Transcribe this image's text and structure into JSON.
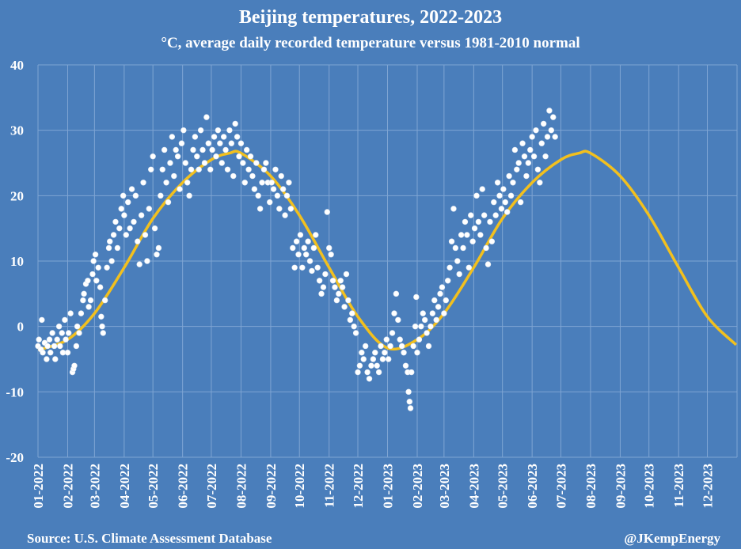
{
  "chart_data": {
    "type": "scatter",
    "title": "Beijing temperatures, 2022-2023",
    "subtitle": "°C, average daily recorded temperature versus 1981-2010 normal",
    "source": "Source: U.S. Climate Assessment Database",
    "credit": "@JKempEnergy",
    "xlabel": "",
    "ylabel": "",
    "ylim": [
      -20,
      40
    ],
    "yticks": [
      "-20",
      "-10",
      "0",
      "10",
      "20",
      "30",
      "40"
    ],
    "xticks": [
      "01-2022",
      "02-2022",
      "03-2022",
      "04-2022",
      "05-2022",
      "06-2022",
      "07-2022",
      "08-2022",
      "09-2022",
      "10-2022",
      "11-2022",
      "12-2022",
      "01-2023",
      "02-2023",
      "03-2023",
      "04-2023",
      "05-2023",
      "06-2023",
      "07-2023",
      "08-2023",
      "09-2023",
      "10-2023",
      "11-2023",
      "12-2023"
    ],
    "x_unit": "days since 2022-01-01",
    "xlim": [
      0,
      730
    ],
    "grid": true,
    "colors": {
      "background": "#4a7ebb",
      "points": "#ffffff",
      "normal": "#f2c01e",
      "grid": "#7fa5d3"
    },
    "series": [
      {
        "name": "Daily recorded temperature",
        "type": "scatter",
        "points": [
          [
            0,
            -3
          ],
          [
            1,
            -2
          ],
          [
            3,
            -3.5
          ],
          [
            4,
            1
          ],
          [
            5,
            -4
          ],
          [
            7,
            -2.5
          ],
          [
            9,
            -5
          ],
          [
            10,
            -3
          ],
          [
            12,
            -2
          ],
          [
            13,
            -4
          ],
          [
            15,
            -1
          ],
          [
            17,
            -3
          ],
          [
            18,
            -5
          ],
          [
            20,
            -2
          ],
          [
            22,
            0
          ],
          [
            23,
            -3
          ],
          [
            25,
            -1
          ],
          [
            26,
            -4
          ],
          [
            28,
            1
          ],
          [
            29,
            -2
          ],
          [
            31,
            -4
          ],
          [
            32,
            -1
          ],
          [
            34,
            2
          ],
          [
            36,
            -7
          ],
          [
            37,
            -6.5
          ],
          [
            38,
            -6
          ],
          [
            40,
            -3
          ],
          [
            41,
            0
          ],
          [
            43,
            -1
          ],
          [
            45,
            2
          ],
          [
            47,
            4
          ],
          [
            48,
            5
          ],
          [
            50,
            6.5
          ],
          [
            52,
            7
          ],
          [
            53,
            3
          ],
          [
            55,
            4
          ],
          [
            57,
            8
          ],
          [
            58,
            10
          ],
          [
            60,
            11
          ],
          [
            61,
            7
          ],
          [
            63,
            9
          ],
          [
            65,
            6
          ],
          [
            66,
            1.5
          ],
          [
            67,
            0
          ],
          [
            68,
            -1
          ],
          [
            70,
            4
          ],
          [
            72,
            9
          ],
          [
            74,
            12
          ],
          [
            75,
            13
          ],
          [
            77,
            10
          ],
          [
            79,
            14
          ],
          [
            81,
            16
          ],
          [
            83,
            12
          ],
          [
            85,
            15
          ],
          [
            87,
            18
          ],
          [
            89,
            20
          ],
          [
            90,
            17
          ],
          [
            92,
            14
          ],
          [
            94,
            19
          ],
          [
            96,
            15
          ],
          [
            98,
            21
          ],
          [
            100,
            16
          ],
          [
            102,
            20
          ],
          [
            104,
            13
          ],
          [
            106,
            9.5
          ],
          [
            108,
            17
          ],
          [
            110,
            22
          ],
          [
            112,
            14
          ],
          [
            114,
            10
          ],
          [
            116,
            18
          ],
          [
            118,
            24
          ],
          [
            120,
            26
          ],
          [
            122,
            15
          ],
          [
            124,
            11
          ],
          [
            126,
            12
          ],
          [
            128,
            20
          ],
          [
            130,
            24
          ],
          [
            132,
            27
          ],
          [
            134,
            22
          ],
          [
            136,
            19
          ],
          [
            138,
            25
          ],
          [
            140,
            29
          ],
          [
            142,
            23
          ],
          [
            144,
            27
          ],
          [
            146,
            26
          ],
          [
            148,
            21
          ],
          [
            150,
            28
          ],
          [
            152,
            30
          ],
          [
            154,
            25
          ],
          [
            156,
            22
          ],
          [
            158,
            20
          ],
          [
            160,
            24
          ],
          [
            162,
            27
          ],
          [
            164,
            29
          ],
          [
            166,
            26
          ],
          [
            168,
            24
          ],
          [
            170,
            30
          ],
          [
            172,
            27
          ],
          [
            174,
            25
          ],
          [
            176,
            32
          ],
          [
            178,
            28
          ],
          [
            180,
            24
          ],
          [
            182,
            27
          ],
          [
            184,
            29
          ],
          [
            186,
            26
          ],
          [
            188,
            30
          ],
          [
            190,
            28
          ],
          [
            192,
            25
          ],
          [
            194,
            29
          ],
          [
            196,
            27
          ],
          [
            198,
            24
          ],
          [
            200,
            30
          ],
          [
            202,
            28
          ],
          [
            204,
            23
          ],
          [
            206,
            31
          ],
          [
            208,
            29
          ],
          [
            210,
            26
          ],
          [
            212,
            28
          ],
          [
            214,
            25
          ],
          [
            216,
            22
          ],
          [
            218,
            27
          ],
          [
            220,
            24
          ],
          [
            222,
            26
          ],
          [
            224,
            23
          ],
          [
            226,
            21
          ],
          [
            228,
            25
          ],
          [
            230,
            20
          ],
          [
            232,
            18
          ],
          [
            234,
            22
          ],
          [
            236,
            24
          ],
          [
            238,
            25
          ],
          [
            240,
            22
          ],
          [
            242,
            19
          ],
          [
            244,
            22
          ],
          [
            246,
            21
          ],
          [
            248,
            24
          ],
          [
            250,
            20
          ],
          [
            252,
            18
          ],
          [
            254,
            23
          ],
          [
            256,
            21
          ],
          [
            258,
            17
          ],
          [
            260,
            20
          ],
          [
            262,
            22
          ],
          [
            264,
            18
          ],
          [
            266,
            12
          ],
          [
            268,
            9
          ],
          [
            270,
            13
          ],
          [
            272,
            11
          ],
          [
            274,
            14
          ],
          [
            276,
            9
          ],
          [
            278,
            12
          ],
          [
            280,
            11
          ],
          [
            282,
            13
          ],
          [
            284,
            10
          ],
          [
            286,
            8.5
          ],
          [
            288,
            12
          ],
          [
            290,
            14
          ],
          [
            292,
            9
          ],
          [
            294,
            7
          ],
          [
            296,
            5
          ],
          [
            298,
            6
          ],
          [
            300,
            8
          ],
          [
            302,
            17.5
          ],
          [
            304,
            12
          ],
          [
            306,
            11
          ],
          [
            308,
            7
          ],
          [
            310,
            6
          ],
          [
            312,
            4
          ],
          [
            314,
            5
          ],
          [
            316,
            7
          ],
          [
            318,
            6
          ],
          [
            320,
            3
          ],
          [
            322,
            8
          ],
          [
            324,
            4
          ],
          [
            326,
            1
          ],
          [
            328,
            2
          ],
          [
            330,
            0
          ],
          [
            332,
            -1
          ],
          [
            334,
            -7
          ],
          [
            336,
            -6
          ],
          [
            338,
            -4
          ],
          [
            340,
            -5
          ],
          [
            342,
            -3
          ],
          [
            344,
            -7
          ],
          [
            346,
            -8
          ],
          [
            348,
            -6
          ],
          [
            350,
            -5
          ],
          [
            352,
            -4
          ],
          [
            354,
            -6
          ],
          [
            356,
            -7
          ],
          [
            358,
            -3
          ],
          [
            360,
            -5
          ],
          [
            362,
            -4
          ],
          [
            364,
            -2
          ],
          [
            366,
            -5
          ],
          [
            368,
            -3
          ],
          [
            370,
            -1
          ],
          [
            372,
            2
          ],
          [
            374,
            5
          ],
          [
            376,
            1
          ],
          [
            378,
            -2
          ],
          [
            380,
            -3
          ],
          [
            382,
            -4
          ],
          [
            384,
            -6
          ],
          [
            386,
            -7
          ],
          [
            387,
            -10
          ],
          [
            388,
            -11.5
          ],
          [
            389,
            -12.5
          ],
          [
            390,
            -7
          ],
          [
            392,
            -3
          ],
          [
            394,
            0
          ],
          [
            395,
            4.5
          ],
          [
            396,
            -4
          ],
          [
            398,
            -2
          ],
          [
            400,
            0
          ],
          [
            402,
            2
          ],
          [
            404,
            1
          ],
          [
            406,
            -1
          ],
          [
            408,
            -3
          ],
          [
            410,
            0
          ],
          [
            412,
            2
          ],
          [
            414,
            4
          ],
          [
            416,
            1
          ],
          [
            418,
            3
          ],
          [
            420,
            5
          ],
          [
            422,
            6
          ],
          [
            424,
            2
          ],
          [
            426,
            4
          ],
          [
            428,
            7
          ],
          [
            430,
            9
          ],
          [
            432,
            13
          ],
          [
            434,
            18
          ],
          [
            436,
            12
          ],
          [
            438,
            10
          ],
          [
            440,
            8
          ],
          [
            442,
            14
          ],
          [
            444,
            12
          ],
          [
            446,
            16
          ],
          [
            448,
            14
          ],
          [
            450,
            9
          ],
          [
            452,
            17
          ],
          [
            454,
            13
          ],
          [
            456,
            15
          ],
          [
            458,
            20
          ],
          [
            460,
            16
          ],
          [
            462,
            14
          ],
          [
            464,
            21
          ],
          [
            466,
            17
          ],
          [
            468,
            12
          ],
          [
            470,
            9.5
          ],
          [
            472,
            16
          ],
          [
            474,
            13
          ],
          [
            476,
            19
          ],
          [
            478,
            17
          ],
          [
            480,
            22
          ],
          [
            482,
            20
          ],
          [
            484,
            18
          ],
          [
            486,
            21
          ],
          [
            488,
            19
          ],
          [
            490,
            17.5
          ],
          [
            492,
            23
          ],
          [
            494,
            20
          ],
          [
            496,
            22
          ],
          [
            498,
            27
          ],
          [
            500,
            24
          ],
          [
            502,
            25
          ],
          [
            504,
            19
          ],
          [
            506,
            28
          ],
          [
            508,
            26
          ],
          [
            510,
            23
          ],
          [
            512,
            25
          ],
          [
            514,
            27
          ],
          [
            516,
            29
          ],
          [
            518,
            26
          ],
          [
            520,
            30
          ],
          [
            522,
            24
          ],
          [
            524,
            22
          ],
          [
            526,
            28
          ],
          [
            528,
            31
          ],
          [
            530,
            26
          ],
          [
            532,
            29
          ],
          [
            534,
            33
          ],
          [
            536,
            30
          ],
          [
            538,
            32
          ],
          [
            540,
            29
          ]
        ]
      },
      {
        "name": "1981-2010 normal",
        "type": "line",
        "points": [
          [
            0,
            -3.6
          ],
          [
            31,
            -2
          ],
          [
            59,
            2
          ],
          [
            90,
            9
          ],
          [
            120,
            16.5
          ],
          [
            151,
            22
          ],
          [
            181,
            25.5
          ],
          [
            200,
            26.5
          ],
          [
            212,
            26.5
          ],
          [
            243,
            23
          ],
          [
            273,
            17
          ],
          [
            304,
            9
          ],
          [
            334,
            1.5
          ],
          [
            365,
            -3.3
          ],
          [
            396,
            -2
          ],
          [
            424,
            2
          ],
          [
            455,
            9
          ],
          [
            485,
            16.5
          ],
          [
            516,
            22
          ],
          [
            546,
            25.5
          ],
          [
            565,
            26.5
          ],
          [
            577,
            26.5
          ],
          [
            608,
            23
          ],
          [
            638,
            17
          ],
          [
            669,
            9
          ],
          [
            699,
            1.5
          ],
          [
            729,
            -2.8
          ]
        ]
      }
    ]
  }
}
